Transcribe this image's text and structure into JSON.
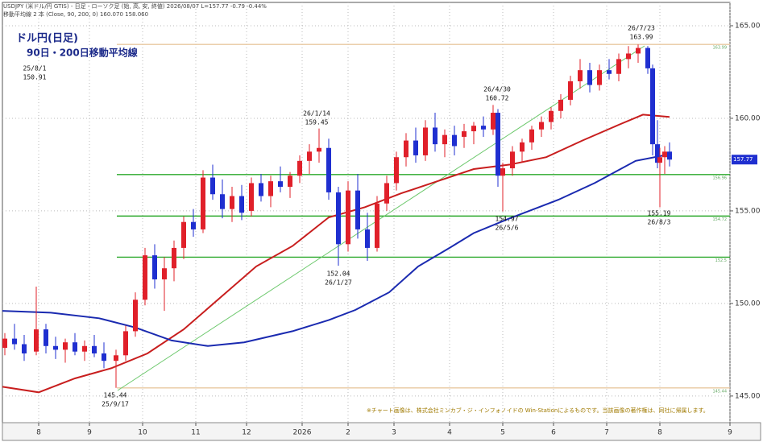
{
  "chart_data": {
    "type": "candlestick",
    "header": {
      "line1": "USDJPY (米ドル/円 GTIS) - 日足 - ローソク足 (始, 高, 安, 終値)   2026/08/07  L=157.77  -0.79  -0.44%",
      "line2": "移動平均線 2 本 (Close, 90, 200, 0)  160.070  158.060"
    },
    "title": "ドル円(日足)",
    "subtitle": "90日・200日移動平均線",
    "note": "※チャート画像は、株式会社ミンカブ・ジ・インフォノイドの Win-Stationによるものです。当該画像の著作権は、同社に帰属します。",
    "up_color": "#e0202a",
    "down_color": "#1f2fd0",
    "x": [
      1,
      5,
      9,
      14,
      18,
      22,
      26,
      30,
      34,
      38,
      42,
      47,
      51,
      55,
      59,
      63,
      67,
      71,
      75,
      79,
      83,
      87,
      91,
      95,
      99,
      103,
      107,
      111,
      115,
      119,
      123,
      127,
      131,
      135,
      139,
      143,
      147,
      151,
      155,
      159,
      163,
      167,
      171,
      175,
      179,
      183,
      187,
      191,
      195,
      199,
      203,
      205,
      207,
      211,
      215,
      219,
      223,
      227,
      231,
      235,
      239,
      243,
      247,
      251,
      255,
      259,
      263,
      267,
      269,
      271,
      272,
      274,
      276
    ],
    "open": [
      147.6,
      148.1,
      147.8,
      147.4,
      148.6,
      147.7,
      147.5,
      147.9,
      147.4,
      147.7,
      147.3,
      146.9,
      147.2,
      148.5,
      150.2,
      152.6,
      151.3,
      151.9,
      153.0,
      154.4,
      154.0,
      156.8,
      155.9,
      155.1,
      155.8,
      155.0,
      156.5,
      155.8,
      156.6,
      156.3,
      156.9,
      157.7,
      158.2,
      158.4,
      156.0,
      153.2,
      156.1,
      154.0,
      153.0,
      155.4,
      156.5,
      157.9,
      158.8,
      158.0,
      159.5,
      158.6,
      159.1,
      159.0,
      159.3,
      159.6,
      159.4,
      160.3,
      156.9,
      157.3,
      158.2,
      158.7,
      159.4,
      159.8,
      160.4,
      161.0,
      162.0,
      162.6,
      161.8,
      162.6,
      162.4,
      163.2,
      163.5,
      163.8,
      162.7,
      158.6,
      157.6,
      157.9,
      158.2
    ],
    "high": [
      148.4,
      148.9,
      148.3,
      150.91,
      148.9,
      148.2,
      148.1,
      148.4,
      148.0,
      148.3,
      147.9,
      147.5,
      148.8,
      150.6,
      153.0,
      153.2,
      152.5,
      153.4,
      154.7,
      155.1,
      157.2,
      157.5,
      156.7,
      156.3,
      156.4,
      156.8,
      157.0,
      156.9,
      157.4,
      157.1,
      158.0,
      158.6,
      159.45,
      158.9,
      156.3,
      156.6,
      157.0,
      154.9,
      155.8,
      156.9,
      158.2,
      159.2,
      159.5,
      159.9,
      160.3,
      159.4,
      159.6,
      159.7,
      159.8,
      160.1,
      160.72,
      160.5,
      157.6,
      158.5,
      158.9,
      159.6,
      160.1,
      160.6,
      161.3,
      162.3,
      163.2,
      163.0,
      162.9,
      163.2,
      163.5,
      163.9,
      163.99,
      163.9,
      162.9,
      159.9,
      158.4,
      158.5,
      158.7
    ],
    "low": [
      147.2,
      147.5,
      146.9,
      147.2,
      147.3,
      147.0,
      146.8,
      147.2,
      146.9,
      147.1,
      146.5,
      145.44,
      146.9,
      148.2,
      149.9,
      150.8,
      149.6,
      151.2,
      152.4,
      153.6,
      153.8,
      155.6,
      154.6,
      154.4,
      154.5,
      154.7,
      155.5,
      155.2,
      156.0,
      155.7,
      156.5,
      157.0,
      157.6,
      155.6,
      152.04,
      152.8,
      153.5,
      152.3,
      152.8,
      155.0,
      156.1,
      157.4,
      157.6,
      157.7,
      158.2,
      157.9,
      158.0,
      158.4,
      158.6,
      159.0,
      159.1,
      156.3,
      154.97,
      156.9,
      157.6,
      158.3,
      159.0,
      159.4,
      160.0,
      160.7,
      161.6,
      161.4,
      161.5,
      162.1,
      162.0,
      162.7,
      163.0,
      162.4,
      158.0,
      157.3,
      155.19,
      157.0,
      157.4
    ],
    "close": [
      148.1,
      147.8,
      147.3,
      148.6,
      147.7,
      147.5,
      147.9,
      147.4,
      147.7,
      147.3,
      146.9,
      147.2,
      148.5,
      150.2,
      152.6,
      151.3,
      151.9,
      153.0,
      154.4,
      154.0,
      156.8,
      155.9,
      155.1,
      155.8,
      154.9,
      156.5,
      155.8,
      156.6,
      156.3,
      156.9,
      157.7,
      158.2,
      158.4,
      156.0,
      153.2,
      156.1,
      154.0,
      153.0,
      155.4,
      156.5,
      157.9,
      158.8,
      158.0,
      159.5,
      158.6,
      159.1,
      158.5,
      159.3,
      159.6,
      159.4,
      160.3,
      156.9,
      157.3,
      158.2,
      158.7,
      159.4,
      159.8,
      160.4,
      161.0,
      162.0,
      162.6,
      161.8,
      162.6,
      162.4,
      163.2,
      163.5,
      163.8,
      162.7,
      158.6,
      157.6,
      157.9,
      158.2,
      157.77
    ],
    "moving_averages": [
      {
        "color": "#c81e1e",
        "x": [
          0,
          15,
          30,
          45,
          60,
          75,
          90,
          105,
          120,
          135,
          150,
          165,
          180,
          195,
          210,
          225,
          240,
          255,
          265,
          276
        ],
        "values": [
          145.5,
          145.2,
          145.95,
          146.5,
          147.3,
          148.6,
          150.3,
          152.0,
          153.1,
          154.65,
          155.2,
          155.95,
          156.6,
          157.26,
          157.5,
          157.9,
          158.8,
          159.65,
          160.2,
          160.07
        ]
      },
      {
        "color": "#1a2ab0",
        "x": [
          0,
          20,
          40,
          55,
          70,
          85,
          100,
          120,
          135,
          146,
          160,
          172,
          185,
          195,
          210,
          230,
          245,
          262,
          276
        ],
        "values": [
          149.6,
          149.5,
          149.2,
          148.7,
          148.0,
          147.7,
          147.9,
          148.5,
          149.1,
          149.65,
          150.6,
          152.0,
          153.0,
          153.8,
          154.6,
          155.6,
          156.5,
          157.7,
          158.06
        ]
      }
    ],
    "hlines": [
      {
        "value": 163.99,
        "color": "#e8c8a0"
      },
      {
        "value": 156.96,
        "color": "#2aa82a"
      },
      {
        "value": 154.72,
        "color": "#2aa82a"
      },
      {
        "value": 152.5,
        "color": "#2aa82a"
      },
      {
        "value": 145.44,
        "color": "#e8c8a0"
      }
    ],
    "last": 157.77,
    "annotations": [
      {
        "date": "25/8/1",
        "value": 150.91
      },
      {
        "date": "25/9/17",
        "value": 145.44
      },
      {
        "date": "26/1/14",
        "value": 159.45
      },
      {
        "date": "26/1/27",
        "value": 152.04
      },
      {
        "date": "26/4/30",
        "value": 160.72
      },
      {
        "date": "26/5/6",
        "value": 154.97
      },
      {
        "date": "26/7/23",
        "value": 163.99
      },
      {
        "date": "26/8/3",
        "value": 155.19
      }
    ],
    "xlim": [
      0,
      301
    ],
    "xticks": [
      {
        "value": 15,
        "label": "8"
      },
      {
        "value": 36,
        "label": "9"
      },
      {
        "value": 58,
        "label": "10"
      },
      {
        "value": 80,
        "label": "11"
      },
      {
        "value": 101,
        "label": "12"
      },
      {
        "value": 124,
        "label": "2026"
      },
      {
        "value": 143,
        "label": "2"
      },
      {
        "value": 162,
        "label": "3"
      },
      {
        "value": 185,
        "label": "4"
      },
      {
        "value": 207,
        "label": "5"
      },
      {
        "value": 228,
        "label": "6"
      },
      {
        "value": 250,
        "label": "7"
      },
      {
        "value": 272,
        "label": "8"
      },
      {
        "value": 301,
        "label": "9"
      }
    ],
    "ylim": [
      143.56,
      166.26
    ],
    "yticks": [
      {
        "value": 145,
        "label": "145.00"
      },
      {
        "value": 150,
        "label": "150.00"
      },
      {
        "value": 155,
        "label": "155.00"
      },
      {
        "value": 160,
        "label": "160.00"
      },
      {
        "value": 165,
        "label": "165.00"
      }
    ],
    "grid": true
  }
}
